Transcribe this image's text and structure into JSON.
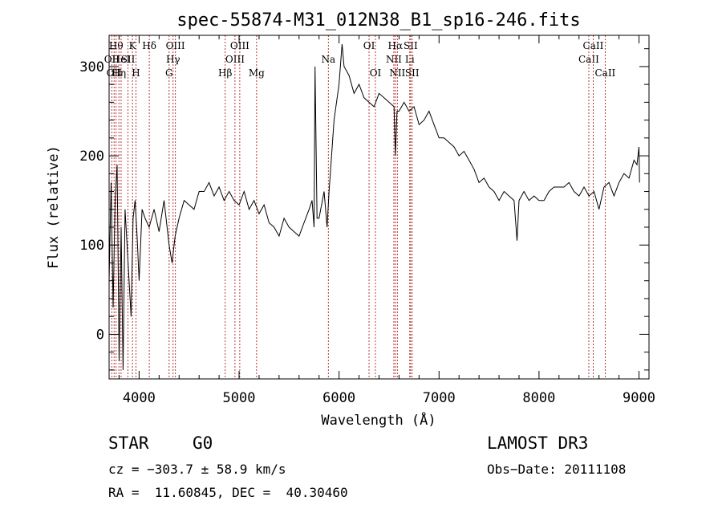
{
  "chart_data": {
    "type": "line",
    "title": "spec-55874-M31_012N38_B1_sp16-246.fits",
    "xlabel": "Wavelength (Å)",
    "ylabel": "Flux (relative)",
    "xlim": [
      3700,
      9100
    ],
    "ylim": [
      -50,
      335
    ],
    "xticks": [
      4000,
      5000,
      6000,
      7000,
      8000,
      9000
    ],
    "yticks": [
      0,
      100,
      200,
      300
    ],
    "grid": false,
    "spectrum": {
      "x": [
        3700,
        3720,
        3740,
        3760,
        3780,
        3800,
        3820,
        3840,
        3860,
        3880,
        3900,
        3920,
        3940,
        3960,
        3980,
        4000,
        4030,
        4060,
        4100,
        4150,
        4200,
        4250,
        4300,
        4330,
        4360,
        4400,
        4450,
        4500,
        4550,
        4600,
        4650,
        4700,
        4750,
        4800,
        4850,
        4900,
        4950,
        5000,
        5050,
        5100,
        5150,
        5200,
        5250,
        5300,
        5350,
        5400,
        5450,
        5500,
        5550,
        5600,
        5650,
        5700,
        5730,
        5750,
        5760,
        5780,
        5800,
        5850,
        5880,
        5900,
        5950,
        6000,
        6030,
        6050,
        6100,
        6150,
        6200,
        6250,
        6300,
        6350,
        6400,
        6450,
        6500,
        6550,
        6563,
        6580,
        6600,
        6650,
        6700,
        6750,
        6800,
        6850,
        6900,
        6950,
        7000,
        7050,
        7100,
        7150,
        7200,
        7250,
        7300,
        7350,
        7400,
        7450,
        7500,
        7550,
        7600,
        7650,
        7700,
        7750,
        7780,
        7800,
        7850,
        7900,
        7950,
        8000,
        8050,
        8100,
        8150,
        8200,
        8250,
        8300,
        8350,
        8400,
        8450,
        8500,
        8550,
        8600,
        8650,
        8700,
        8750,
        8800,
        8850,
        8900,
        8950,
        8980,
        9000,
        9005
      ],
      "y": [
        60,
        170,
        30,
        150,
        190,
        -30,
        120,
        -40,
        140,
        100,
        60,
        20,
        130,
        150,
        110,
        60,
        140,
        130,
        120,
        140,
        115,
        150,
        100,
        80,
        110,
        130,
        150,
        145,
        140,
        160,
        160,
        170,
        155,
        165,
        150,
        160,
        150,
        145,
        160,
        140,
        150,
        135,
        145,
        125,
        120,
        110,
        130,
        120,
        115,
        110,
        125,
        140,
        150,
        120,
        300,
        130,
        130,
        160,
        120,
        160,
        240,
        280,
        325,
        300,
        290,
        270,
        280,
        265,
        260,
        255,
        270,
        265,
        260,
        255,
        200,
        250,
        250,
        260,
        250,
        255,
        235,
        240,
        250,
        235,
        220,
        220,
        215,
        210,
        200,
        205,
        195,
        185,
        170,
        175,
        165,
        160,
        150,
        160,
        155,
        150,
        105,
        150,
        160,
        150,
        155,
        150,
        150,
        160,
        165,
        165,
        165,
        170,
        160,
        155,
        165,
        155,
        160,
        140,
        165,
        170,
        155,
        170,
        180,
        175,
        195,
        190,
        210,
        170
      ]
    },
    "line_markers": [
      {
        "x": 3727,
        "label": "OII",
        "row": 2
      },
      {
        "x": 3750,
        "label": "OII",
        "row": 3
      },
      {
        "x": 3770,
        "label": "Hθ",
        "row": 1
      },
      {
        "x": 3798,
        "label": "Hη",
        "row": 3
      },
      {
        "x": 3820,
        "label": "HeI",
        "row": 2
      },
      {
        "x": 3889,
        "label": "SII",
        "row": 2
      },
      {
        "x": 3934,
        "label": "K",
        "row": 1
      },
      {
        "x": 3969,
        "label": "H",
        "row": 3
      },
      {
        "x": 4102,
        "label": "Hδ",
        "row": 1
      },
      {
        "x": 4300,
        "label": "G",
        "row": 3
      },
      {
        "x": 4340,
        "label": "Hγ",
        "row": 2
      },
      {
        "x": 4363,
        "label": "OIII",
        "row": 1
      },
      {
        "x": 4861,
        "label": "Hβ",
        "row": 3
      },
      {
        "x": 4959,
        "label": "OIII",
        "row": 2
      },
      {
        "x": 5007,
        "label": "OIII",
        "row": 1
      },
      {
        "x": 5175,
        "label": "Mg",
        "row": 3
      },
      {
        "x": 5893,
        "label": "Na",
        "row": 2
      },
      {
        "x": 6300,
        "label": "OI",
        "row": 1
      },
      {
        "x": 6364,
        "label": "OI",
        "row": 3
      },
      {
        "x": 6548,
        "label": "NII",
        "row": 2
      },
      {
        "x": 6563,
        "label": "Hα",
        "row": 1
      },
      {
        "x": 6583,
        "label": "NII",
        "row": 3
      },
      {
        "x": 6707,
        "label": "Li",
        "row": 2
      },
      {
        "x": 6716,
        "label": "SII",
        "row": 1
      },
      {
        "x": 6731,
        "label": "SII",
        "row": 3
      },
      {
        "x": 8498,
        "label": "CaII",
        "row": 2
      },
      {
        "x": 8542,
        "label": "CaII",
        "row": 1
      },
      {
        "x": 8662,
        "label": "CaII",
        "row": 3
      }
    ]
  },
  "info": {
    "class": "STAR",
    "subclass": "G0",
    "survey": "LAMOST DR3",
    "cz": "cz = −303.7 ± 58.9 km/s",
    "obs_date": "Obs−Date: 20111108",
    "radec": "RA =  11.60845, DEC =  40.30460"
  }
}
